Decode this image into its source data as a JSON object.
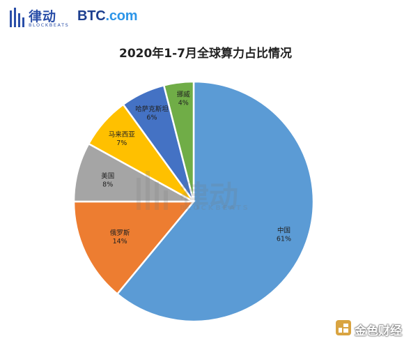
{
  "header": {
    "brand_name": "律动",
    "brand_sub": "BLOCKBEATS",
    "partner_btc": "BTC",
    "partner_com": ".com"
  },
  "watermark": {
    "name": "律动",
    "sub": "BLOCKBEATS"
  },
  "footer": {
    "brand": "金色财经"
  },
  "colors": {
    "china": "#5b9bd5",
    "russia": "#ed7d31",
    "usa": "#a5a5a5",
    "malaysia": "#ffc000",
    "kazakhstan": "#4472c4",
    "norway": "#70ad47",
    "brand_blue": "#2a4ea8"
  },
  "chart_data": {
    "type": "pie",
    "title": "2020年1-7月全球算力占比情况",
    "categories": [
      "中国",
      "俄罗斯",
      "美国",
      "马来西亚",
      "哈萨克斯坦",
      "挪威"
    ],
    "values": [
      61,
      14,
      8,
      7,
      6,
      4
    ],
    "labels": [
      "61%",
      "14%",
      "8%",
      "7%",
      "6%",
      "4%"
    ],
    "legend": "none",
    "data_labels": "inside"
  }
}
